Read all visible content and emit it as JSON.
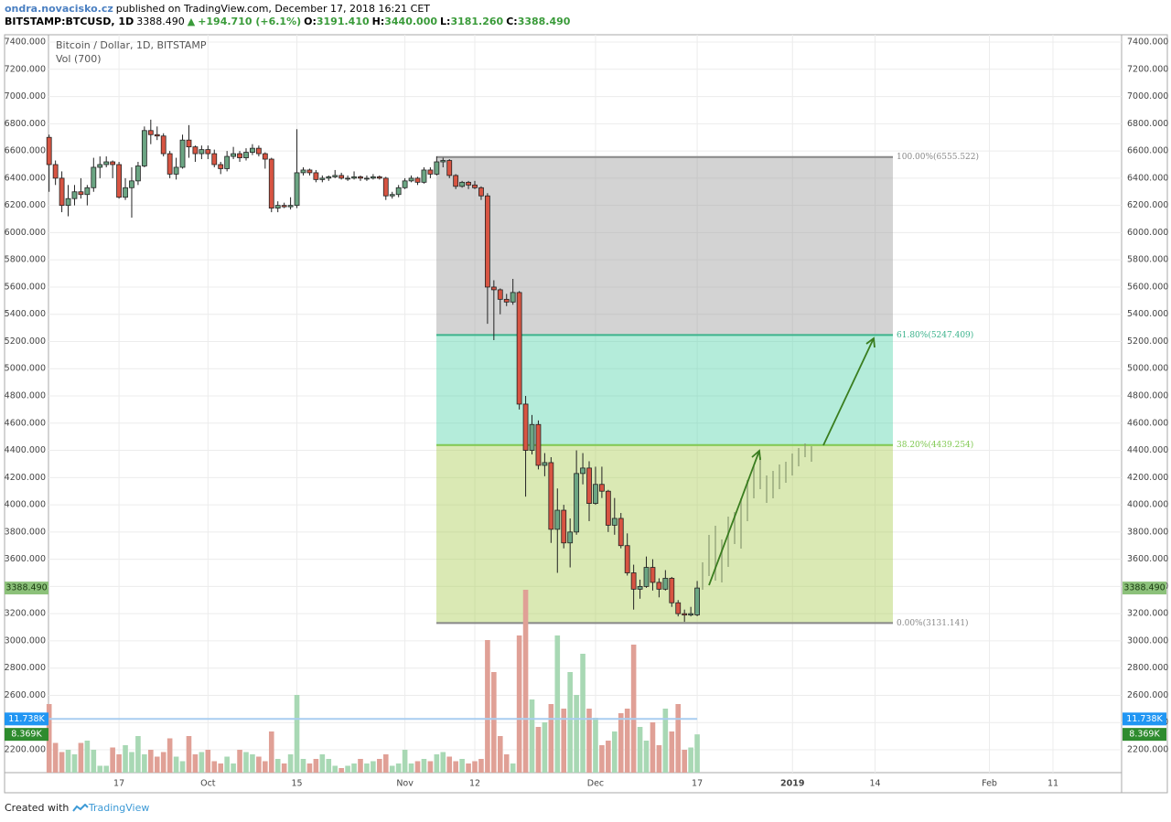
{
  "header": {
    "author": "ondra.novacisko.cz",
    "published": "published on TradingView.com, December 17, 2018 16:21 CET",
    "symbol": "BITSTAMP:BTCUSD, 1D",
    "last": "3388.490",
    "arrow": "▲",
    "change": "+194.710 (+6.1%)",
    "o_label": "O:",
    "open": "3191.410",
    "h_label": "H:",
    "high": "3440.000",
    "l_label": "L:",
    "low": "3181.260",
    "c_label": "C:",
    "close": "3388.490"
  },
  "chart_data": {
    "type": "candlestick",
    "title": "Bitcoin / Dollar, 1D, BITSTAMP",
    "volume_title": "Vol (700)",
    "up_color": "#6ba583",
    "down_color": "#d75442",
    "volume_up_color": "#a8d8b4",
    "volume_down_color": "#e0a096",
    "grid": true,
    "xlim": [
      -0.1,
      168.8
    ],
    "xticks": [
      {
        "value": 11,
        "label": "17"
      },
      {
        "value": 25,
        "label": "Oct"
      },
      {
        "value": 39,
        "label": "15"
      },
      {
        "value": 56,
        "label": "Nov"
      },
      {
        "value": 67,
        "label": "12"
      },
      {
        "value": 86,
        "label": "Dec"
      },
      {
        "value": 102,
        "label": "17"
      },
      {
        "value": 117,
        "label": "2019"
      },
      {
        "value": 130,
        "label": "14"
      },
      {
        "value": 148,
        "label": "Feb"
      },
      {
        "value": 158,
        "label": "11"
      }
    ],
    "ylim": [
      2032,
      7454
    ],
    "yticks": [
      {
        "value": 2200,
        "label": "2200.000"
      },
      {
        "value": 2400,
        "label": "2400.000"
      },
      {
        "value": 2600,
        "label": "2600.000"
      },
      {
        "value": 2800,
        "label": "2800.000"
      },
      {
        "value": 3000,
        "label": "3000.000"
      },
      {
        "value": 3200,
        "label": "3200.000"
      },
      {
        "value": 3400,
        "label": "3400.000"
      },
      {
        "value": 3600,
        "label": "3600.000"
      },
      {
        "value": 3800,
        "label": "3800.000"
      },
      {
        "value": 4000,
        "label": "4000.000"
      },
      {
        "value": 4200,
        "label": "4200.000"
      },
      {
        "value": 4400,
        "label": "4400.000"
      },
      {
        "value": 4600,
        "label": "4600.000"
      },
      {
        "value": 4800,
        "label": "4800.000"
      },
      {
        "value": 5000,
        "label": "5000.000"
      },
      {
        "value": 5200,
        "label": "5200.000"
      },
      {
        "value": 5400,
        "label": "5400.000"
      },
      {
        "value": 5600,
        "label": "5600.000"
      },
      {
        "value": 5800,
        "label": "5800.000"
      },
      {
        "value": 6000,
        "label": "6000.000"
      },
      {
        "value": 6200,
        "label": "6200.000"
      },
      {
        "value": 6400,
        "label": "6400.000"
      },
      {
        "value": 6600,
        "label": "6600.000"
      },
      {
        "value": 6800,
        "label": "6800.000"
      },
      {
        "value": 7000,
        "label": "7000.000"
      },
      {
        "value": 7200,
        "label": "7200.000"
      },
      {
        "value": 7400,
        "label": "7400.000"
      }
    ],
    "ohlc": [
      [
        6700,
        6720,
        6300,
        6500
      ],
      [
        6500,
        6530,
        6350,
        6400
      ],
      [
        6400,
        6450,
        6150,
        6200
      ],
      [
        6200,
        6350,
        6120,
        6250
      ],
      [
        6250,
        6350,
        6200,
        6300
      ],
      [
        6300,
        6400,
        6250,
        6280
      ],
      [
        6280,
        6350,
        6200,
        6330
      ],
      [
        6330,
        6550,
        6300,
        6480
      ],
      [
        6480,
        6560,
        6400,
        6500
      ],
      [
        6500,
        6560,
        6480,
        6520
      ],
      [
        6520,
        6530,
        6400,
        6500
      ],
      [
        6500,
        6520,
        6250,
        6260
      ],
      [
        6260,
        6400,
        6240,
        6330
      ],
      [
        6330,
        6480,
        6110,
        6380
      ],
      [
        6380,
        6520,
        6350,
        6490
      ],
      [
        6490,
        6780,
        6480,
        6750
      ],
      [
        6750,
        6830,
        6650,
        6720
      ],
      [
        6720,
        6780,
        6680,
        6710
      ],
      [
        6710,
        6730,
        6560,
        6580
      ],
      [
        6580,
        6600,
        6400,
        6430
      ],
      [
        6430,
        6550,
        6390,
        6480
      ],
      [
        6480,
        6720,
        6470,
        6680
      ],
      [
        6680,
        6790,
        6550,
        6630
      ],
      [
        6630,
        6640,
        6520,
        6580
      ],
      [
        6580,
        6640,
        6540,
        6610
      ],
      [
        6610,
        6640,
        6540,
        6580
      ],
      [
        6580,
        6610,
        6480,
        6500
      ],
      [
        6500,
        6520,
        6430,
        6470
      ],
      [
        6470,
        6600,
        6450,
        6560
      ],
      [
        6560,
        6630,
        6540,
        6580
      ],
      [
        6580,
        6600,
        6520,
        6550
      ],
      [
        6550,
        6620,
        6530,
        6590
      ],
      [
        6590,
        6650,
        6570,
        6620
      ],
      [
        6620,
        6640,
        6560,
        6580
      ],
      [
        6580,
        6590,
        6470,
        6540
      ],
      [
        6540,
        6550,
        6150,
        6180
      ],
      [
        6180,
        6230,
        6150,
        6200
      ],
      [
        6200,
        6220,
        6180,
        6190
      ],
      [
        6190,
        6260,
        6170,
        6200
      ],
      [
        6200,
        6760,
        6180,
        6440
      ],
      [
        6440,
        6480,
        6420,
        6460
      ],
      [
        6460,
        6470,
        6420,
        6440
      ],
      [
        6440,
        6460,
        6370,
        6390
      ],
      [
        6390,
        6420,
        6370,
        6400
      ],
      [
        6400,
        6420,
        6380,
        6410
      ],
      [
        6410,
        6460,
        6400,
        6420
      ],
      [
        6420,
        6440,
        6390,
        6400
      ],
      [
        6400,
        6420,
        6380,
        6400
      ],
      [
        6400,
        6450,
        6390,
        6410
      ],
      [
        6410,
        6420,
        6380,
        6400
      ],
      [
        6400,
        6420,
        6380,
        6400
      ],
      [
        6400,
        6430,
        6390,
        6410
      ],
      [
        6410,
        6420,
        6390,
        6400
      ],
      [
        6400,
        6410,
        6240,
        6270
      ],
      [
        6270,
        6300,
        6250,
        6280
      ],
      [
        6280,
        6350,
        6260,
        6330
      ],
      [
        6330,
        6400,
        6320,
        6380
      ],
      [
        6380,
        6420,
        6370,
        6400
      ],
      [
        6400,
        6410,
        6350,
        6370
      ],
      [
        6370,
        6480,
        6360,
        6460
      ],
      [
        6460,
        6480,
        6400,
        6430
      ],
      [
        6430,
        6560,
        6420,
        6520
      ],
      [
        6520,
        6550,
        6480,
        6530
      ],
      [
        6530,
        6540,
        6400,
        6420
      ],
      [
        6420,
        6430,
        6320,
        6340
      ],
      [
        6340,
        6380,
        6330,
        6370
      ],
      [
        6370,
        6380,
        6320,
        6350
      ],
      [
        6350,
        6380,
        6320,
        6330
      ],
      [
        6330,
        6340,
        6240,
        6270
      ],
      [
        6270,
        6290,
        5330,
        5600
      ],
      [
        5600,
        5650,
        5210,
        5580
      ],
      [
        5580,
        5590,
        5400,
        5510
      ],
      [
        5510,
        5550,
        5460,
        5490
      ],
      [
        5490,
        5660,
        5470,
        5560
      ],
      [
        5560,
        5570,
        4700,
        4740
      ],
      [
        4740,
        4800,
        4060,
        4400
      ],
      [
        4400,
        4660,
        4370,
        4590
      ],
      [
        4590,
        4620,
        4260,
        4290
      ],
      [
        4290,
        4380,
        4210,
        4310
      ],
      [
        4310,
        4350,
        3720,
        3820
      ],
      [
        3820,
        4120,
        3500,
        3960
      ],
      [
        3960,
        4000,
        3680,
        3720
      ],
      [
        3720,
        3900,
        3540,
        3800
      ],
      [
        3800,
        4400,
        3780,
        4230
      ],
      [
        4230,
        4380,
        4150,
        4270
      ],
      [
        4270,
        4320,
        3880,
        4010
      ],
      [
        4010,
        4280,
        4000,
        4150
      ],
      [
        4150,
        4280,
        4050,
        4100
      ],
      [
        4100,
        4110,
        3800,
        3850
      ],
      [
        3850,
        4050,
        3780,
        3900
      ],
      [
        3900,
        3940,
        3680,
        3700
      ],
      [
        3700,
        3790,
        3480,
        3500
      ],
      [
        3500,
        3560,
        3230,
        3380
      ],
      [
        3380,
        3450,
        3310,
        3400
      ],
      [
        3400,
        3620,
        3390,
        3540
      ],
      [
        3540,
        3600,
        3370,
        3430
      ],
      [
        3430,
        3460,
        3320,
        3380
      ],
      [
        3380,
        3520,
        3370,
        3460
      ],
      [
        3460,
        3470,
        3250,
        3280
      ],
      [
        3280,
        3300,
        3180,
        3200
      ],
      [
        3200,
        3230,
        3140,
        3190
      ],
      [
        3190,
        3250,
        3180,
        3200
      ],
      [
        3191.41,
        3440,
        3181.26,
        3388.49
      ]
    ],
    "volume": [
      15000,
      6500,
      4500,
      5000,
      4000,
      6500,
      7000,
      5000,
      1500,
      1500,
      5500,
      4000,
      6000,
      4500,
      8000,
      4000,
      5000,
      3500,
      4500,
      7500,
      3500,
      2500,
      8000,
      4000,
      4500,
      5000,
      2500,
      2000,
      3500,
      2000,
      5000,
      4500,
      4000,
      3500,
      2500,
      9000,
      3000,
      2000,
      4000,
      17000,
      3000,
      2000,
      3000,
      4000,
      3000,
      1500,
      1000,
      1500,
      2000,
      3000,
      2000,
      2500,
      3000,
      4000,
      1500,
      2000,
      5000,
      2000,
      2500,
      3000,
      2500,
      4000,
      4500,
      3500,
      2500,
      3000,
      2000,
      2500,
      3000,
      29000,
      22000,
      8000,
      4000,
      2000,
      30000,
      40000,
      16000,
      10000,
      11000,
      15000,
      30000,
      14000,
      22000,
      17000,
      26000,
      14000,
      12000,
      6000,
      7000,
      9000,
      13000,
      14000,
      28000,
      10000,
      7000,
      11000,
      6000,
      14000,
      9000,
      15000,
      5000,
      5500,
      8369
    ],
    "volume_ma": {
      "value": 11738,
      "label": "11.738K"
    },
    "volume_last": {
      "value": 8369,
      "label": "8.369K"
    },
    "last_price": {
      "value": 3388.49,
      "label": "3388.490"
    },
    "fib": [
      {
        "price": 6555.522,
        "label": "100.00%(6555.522)",
        "color": "#888888",
        "fill": "rgba(150,150,150,0.42)"
      },
      {
        "price": 5247.409,
        "label": "61.80%(5247.409)",
        "color": "#3cb38c",
        "fill": "rgba(80,210,170,0.43)"
      },
      {
        "price": 4439.254,
        "label": "38.20%(4439.254)",
        "color": "#7fc850",
        "fill": "rgba(170,205,80,0.43)"
      },
      {
        "price": 3131.141,
        "label": "0.00%(3131.141)",
        "color": "#888888"
      }
    ]
  },
  "footer": {
    "created": "Created with",
    "brand": "TradingView"
  }
}
